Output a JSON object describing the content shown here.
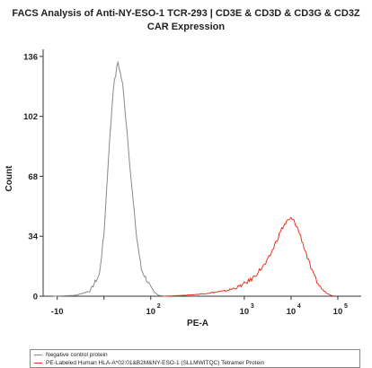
{
  "chart_data": {
    "type": "line",
    "title_line1": "FACS Analysis of Anti-NY-ESO-1 TCR-293 | CD3E & CD3D & CD3G & CD3Z",
    "title_line2": "CAR Expression",
    "xlabel": "PE-A",
    "ylabel": "Count",
    "y_ticks": [
      0,
      34,
      68,
      102,
      136
    ],
    "ylim": [
      0,
      140
    ],
    "x_scale": "biexponential",
    "xlim": [
      -20,
      316228
    ],
    "x_ticks": [
      {
        "value": -10,
        "label": "-10"
      },
      {
        "value": 0,
        "label": ""
      },
      {
        "value": 10,
        "label": "10"
      },
      {
        "value": 1000,
        "label": "10"
      },
      {
        "value": 10000,
        "label": "10"
      },
      {
        "value": 100000,
        "label": "10"
      }
    ],
    "x_tick_exponents": [
      "",
      "",
      "2",
      "3",
      "4",
      "5"
    ],
    "grid": false,
    "legend_placement": "bottom",
    "series": [
      {
        "name": "Negative control protein",
        "color": "#888888",
        "x": [
          -12,
          -6,
          -3,
          -1,
          0,
          1,
          2,
          3,
          4,
          5,
          6,
          7,
          8,
          10,
          12,
          15,
          20
        ],
        "y": [
          0,
          0.5,
          3,
          12,
          35,
          80,
          118,
          133,
          120,
          92,
          60,
          33,
          15,
          5,
          2,
          0.5,
          0
        ]
      },
      {
        "name": "PE-Labeled Human HLA-A*02:01&B2M&NY-ESO-1 (SLLMWITQC) Tetramer Protein",
        "color": "#e8331c",
        "x": [
          20,
          50,
          100,
          200,
          400,
          700,
          1000,
          1500,
          2000,
          3000,
          4000,
          5000,
          6000,
          7000,
          8000,
          9000,
          10000,
          11000,
          12000,
          14000,
          16000,
          20000,
          25000,
          30000,
          40000,
          50000,
          60000,
          70000,
          80000
        ],
        "y": [
          0,
          0.5,
          1,
          2,
          3,
          5,
          7,
          10,
          14,
          19,
          26,
          32,
          37,
          40,
          42,
          43,
          44,
          43,
          42,
          38,
          34,
          26,
          18,
          12,
          6,
          3,
          1.5,
          0.7,
          0
        ]
      }
    ]
  }
}
